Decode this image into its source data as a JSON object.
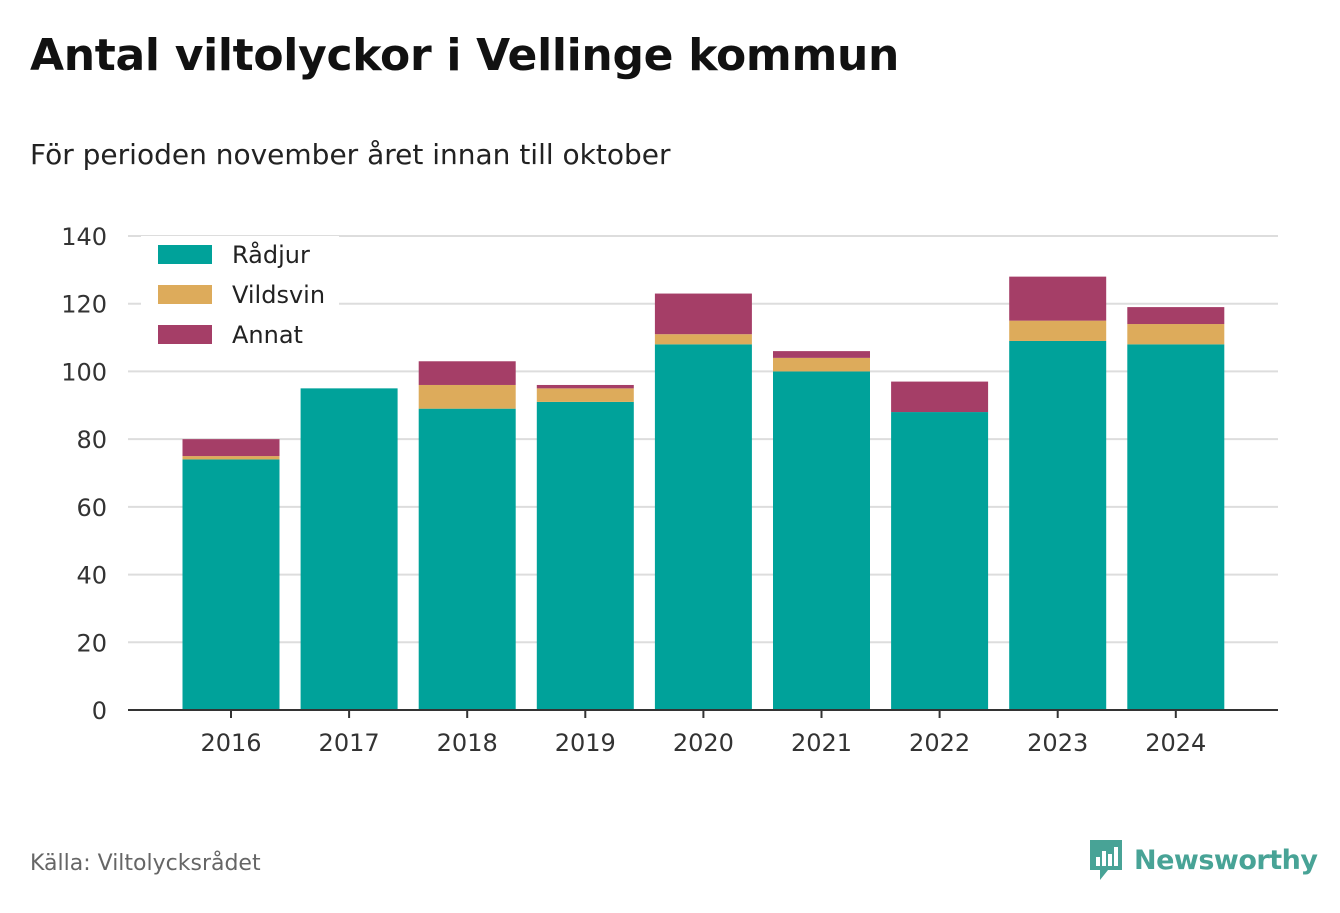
{
  "header": {
    "title": "Antal viltolyckor i Vellinge kommun",
    "subtitle": "För perioden november året innan till oktober"
  },
  "footer": {
    "source": "Källa: Viltolycksrådet",
    "brand": "Newsworthy"
  },
  "colors": {
    "radjur": "#00a29a",
    "vildsvin": "#ddab5b",
    "annat": "#a53e67",
    "grid": "#dddddd",
    "axis": "#333333",
    "brand": "#48a396"
  },
  "chart_data": {
    "type": "bar",
    "stacked": true,
    "categories": [
      "2016",
      "2017",
      "2018",
      "2019",
      "2020",
      "2021",
      "2022",
      "2023",
      "2024"
    ],
    "series": [
      {
        "name": "Rådjur",
        "values": [
          74,
          95,
          89,
          91,
          108,
          100,
          88,
          109,
          108
        ]
      },
      {
        "name": "Vildsvin",
        "values": [
          1,
          0,
          7,
          4,
          3,
          4,
          0,
          6,
          6
        ]
      },
      {
        "name": "Annat",
        "values": [
          5,
          0,
          7,
          1,
          12,
          2,
          9,
          13,
          5
        ]
      }
    ],
    "ylim": [
      0,
      140
    ],
    "yticks": [
      0,
      20,
      40,
      60,
      80,
      100,
      120,
      140
    ],
    "grid": true,
    "legend_position": "top-left"
  }
}
